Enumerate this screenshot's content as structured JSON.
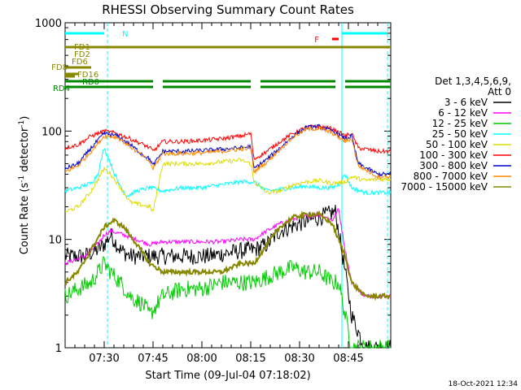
{
  "chart_data": {
    "type": "line",
    "title": "RHESSI Observing Summary Count Rates",
    "xlabel": "Start Time (09-Jul-04 07:18:02)",
    "ylabel_main": "Count Rate (s",
    "ylabel_sup": "-1",
    "ylabel_rest": " detector",
    "ylabel_tail": ")",
    "yscale": "log",
    "ylim": [
      1,
      1000
    ],
    "xlim_minutes": [
      0,
      100
    ],
    "x_ticks": [
      {
        "label": "07:30",
        "t": 12
      },
      {
        "label": "07:45",
        "t": 27
      },
      {
        "label": "08:00",
        "t": 42
      },
      {
        "label": "08:15",
        "t": 57
      },
      {
        "label": "08:30",
        "t": 72
      },
      {
        "label": "08:45",
        "t": 87
      }
    ],
    "y_ticks": [
      {
        "label": "1",
        "v": 1
      },
      {
        "label": "10",
        "v": 10
      },
      {
        "label": "100",
        "v": 100
      },
      {
        "label": "1000",
        "v": 1000
      }
    ],
    "legend_title": [
      "Det 1,3,4,5,6,9,",
      "Att 0"
    ],
    "legend_position": "right",
    "series": [
      {
        "name": "3 - 6 keV",
        "color": "#000000",
        "points": [
          [
            0,
            7
          ],
          [
            6,
            7
          ],
          [
            10,
            8
          ],
          [
            12,
            9
          ],
          [
            14,
            11
          ],
          [
            17,
            8
          ],
          [
            20,
            7
          ],
          [
            26,
            7
          ],
          [
            30,
            7
          ],
          [
            36,
            7
          ],
          [
            44,
            7
          ],
          [
            50,
            7.5
          ],
          [
            56,
            8
          ],
          [
            58,
            8
          ],
          [
            62,
            9
          ],
          [
            66,
            12
          ],
          [
            72,
            14
          ],
          [
            78,
            16
          ],
          [
            83,
            18
          ],
          [
            86,
            5
          ],
          [
            88,
            2
          ],
          [
            92,
            1
          ],
          [
            100,
            1
          ]
        ]
      },
      {
        "name": "6 - 12 keV",
        "color": "#ff00ff",
        "points": [
          [
            0,
            6
          ],
          [
            6,
            7
          ],
          [
            10,
            9
          ],
          [
            12,
            11
          ],
          [
            14,
            12
          ],
          [
            18,
            11
          ],
          [
            22,
            10
          ],
          [
            26,
            9
          ],
          [
            30,
            9.5
          ],
          [
            36,
            9.5
          ],
          [
            42,
            9.5
          ],
          [
            48,
            9.5
          ],
          [
            54,
            10
          ],
          [
            58,
            10
          ],
          [
            62,
            12
          ],
          [
            66,
            14
          ],
          [
            72,
            16
          ],
          [
            78,
            17
          ],
          [
            82,
            15
          ],
          [
            84,
            19
          ],
          [
            86,
            8
          ],
          [
            88,
            4
          ],
          [
            92,
            3
          ],
          [
            100,
            3
          ]
        ]
      },
      {
        "name": "12 - 25 keV",
        "color": "#00cc00",
        "points": [
          [
            0,
            3
          ],
          [
            4,
            3.5
          ],
          [
            8,
            4
          ],
          [
            12,
            6
          ],
          [
            14,
            5
          ],
          [
            17,
            4
          ],
          [
            20,
            3
          ],
          [
            24,
            2.5
          ],
          [
            26,
            2
          ],
          [
            30,
            3
          ],
          [
            36,
            3.5
          ],
          [
            42,
            3.5
          ],
          [
            48,
            4
          ],
          [
            54,
            4
          ],
          [
            58,
            4
          ],
          [
            62,
            4.5
          ],
          [
            66,
            5
          ],
          [
            70,
            5.5
          ],
          [
            74,
            5
          ],
          [
            78,
            5
          ],
          [
            82,
            4
          ],
          [
            84,
            4
          ],
          [
            86,
            2
          ],
          [
            88,
            1
          ],
          [
            100,
            1
          ]
        ]
      },
      {
        "name": "25 - 50 keV",
        "color": "#00ffff",
        "points": [
          [
            0,
            28
          ],
          [
            4,
            30
          ],
          [
            8,
            33
          ],
          [
            10,
            40
          ],
          [
            12,
            70
          ],
          [
            14,
            50
          ],
          [
            16,
            35
          ],
          [
            19,
            25
          ],
          [
            22,
            28
          ],
          [
            26,
            30
          ],
          [
            30,
            28
          ],
          [
            36,
            30
          ],
          [
            42,
            30
          ],
          [
            48,
            32
          ],
          [
            54,
            34
          ],
          [
            58,
            34
          ],
          [
            62,
            28
          ],
          [
            66,
            29
          ],
          [
            70,
            30
          ],
          [
            74,
            31
          ],
          [
            78,
            30
          ],
          [
            82,
            30
          ],
          [
            84,
            32
          ],
          [
            86,
            40
          ],
          [
            88,
            30
          ],
          [
            92,
            27
          ],
          [
            100,
            27
          ]
        ]
      },
      {
        "name": "50 - 100 keV",
        "color": "#dddd00",
        "points": [
          [
            0,
            18
          ],
          [
            4,
            20
          ],
          [
            8,
            28
          ],
          [
            12,
            45
          ],
          [
            14,
            40
          ],
          [
            17,
            30
          ],
          [
            20,
            22
          ],
          [
            26,
            20
          ],
          [
            27,
            18
          ],
          [
            30,
            50
          ],
          [
            36,
            50
          ],
          [
            42,
            50
          ],
          [
            48,
            52
          ],
          [
            54,
            54
          ],
          [
            57,
            50
          ],
          [
            58,
            34
          ],
          [
            62,
            27
          ],
          [
            66,
            28
          ],
          [
            70,
            32
          ],
          [
            74,
            34
          ],
          [
            78,
            35
          ],
          [
            82,
            33
          ],
          [
            86,
            34
          ],
          [
            88,
            38
          ],
          [
            92,
            35
          ],
          [
            96,
            36
          ],
          [
            100,
            36
          ]
        ]
      },
      {
        "name": "100 - 300 keV",
        "color": "#ff0000",
        "points": [
          [
            0,
            70
          ],
          [
            4,
            75
          ],
          [
            8,
            90
          ],
          [
            12,
            100
          ],
          [
            16,
            95
          ],
          [
            20,
            85
          ],
          [
            24,
            75
          ],
          [
            26,
            70
          ],
          [
            27,
            65
          ],
          [
            30,
            80
          ],
          [
            36,
            80
          ],
          [
            42,
            82
          ],
          [
            48,
            85
          ],
          [
            54,
            90
          ],
          [
            57,
            95
          ],
          [
            58,
            55
          ],
          [
            62,
            65
          ],
          [
            66,
            80
          ],
          [
            70,
            95
          ],
          [
            74,
            108
          ],
          [
            78,
            110
          ],
          [
            82,
            105
          ],
          [
            86,
            90
          ],
          [
            88,
            95
          ],
          [
            90,
            70
          ],
          [
            96,
            65
          ],
          [
            100,
            65
          ]
        ]
      },
      {
        "name": "300 - 800 keV",
        "color": "#0000cc",
        "points": [
          [
            0,
            45
          ],
          [
            4,
            50
          ],
          [
            8,
            70
          ],
          [
            12,
            95
          ],
          [
            16,
            90
          ],
          [
            20,
            75
          ],
          [
            24,
            60
          ],
          [
            26,
            55
          ],
          [
            27,
            48
          ],
          [
            30,
            65
          ],
          [
            36,
            65
          ],
          [
            42,
            66
          ],
          [
            48,
            68
          ],
          [
            54,
            70
          ],
          [
            57,
            72
          ],
          [
            58,
            45
          ],
          [
            62,
            55
          ],
          [
            66,
            70
          ],
          [
            70,
            90
          ],
          [
            74,
            108
          ],
          [
            78,
            110
          ],
          [
            82,
            100
          ],
          [
            86,
            85
          ],
          [
            88,
            90
          ],
          [
            90,
            50
          ],
          [
            96,
            40
          ],
          [
            100,
            40
          ]
        ]
      },
      {
        "name": "800 - 7000 keV",
        "color": "#ff8800",
        "points": [
          [
            0,
            42
          ],
          [
            4,
            48
          ],
          [
            8,
            65
          ],
          [
            12,
            90
          ],
          [
            16,
            88
          ],
          [
            20,
            72
          ],
          [
            24,
            58
          ],
          [
            26,
            52
          ],
          [
            27,
            45
          ],
          [
            30,
            62
          ],
          [
            36,
            62
          ],
          [
            42,
            63
          ],
          [
            48,
            65
          ],
          [
            54,
            68
          ],
          [
            57,
            70
          ],
          [
            58,
            42
          ],
          [
            62,
            52
          ],
          [
            66,
            68
          ],
          [
            70,
            88
          ],
          [
            74,
            104
          ],
          [
            78,
            106
          ],
          [
            82,
            96
          ],
          [
            86,
            80
          ],
          [
            88,
            85
          ],
          [
            90,
            48
          ],
          [
            96,
            38
          ],
          [
            100,
            38
          ]
        ]
      },
      {
        "name": "7000 - 15000 keV",
        "color": "#888800",
        "points": [
          [
            0,
            4
          ],
          [
            4,
            5
          ],
          [
            8,
            8
          ],
          [
            12,
            13
          ],
          [
            15,
            15
          ],
          [
            18,
            13
          ],
          [
            22,
            9
          ],
          [
            26,
            6
          ],
          [
            30,
            5
          ],
          [
            36,
            5
          ],
          [
            42,
            5
          ],
          [
            48,
            5
          ],
          [
            54,
            6
          ],
          [
            58,
            6
          ],
          [
            62,
            9
          ],
          [
            66,
            13
          ],
          [
            70,
            16
          ],
          [
            74,
            17
          ],
          [
            78,
            17
          ],
          [
            82,
            14
          ],
          [
            86,
            7
          ],
          [
            88,
            4
          ],
          [
            92,
            3
          ],
          [
            100,
            3
          ]
        ]
      }
    ],
    "state_bars": [
      {
        "label": "N",
        "color": "#00ffff",
        "segments": [
          [
            0,
            12
          ]
        ]
      },
      {
        "label": "F",
        "color": "#ff0000",
        "segments": [
          [
            82,
            84
          ]
        ]
      },
      {
        "label": "",
        "color": "#00ffff",
        "segments": [
          [
            85,
            99
          ]
        ]
      },
      {
        "label": "FD1",
        "color": "#888800",
        "segments": [
          [
            0,
            100
          ]
        ]
      },
      {
        "label": "FD2",
        "color": "#888800",
        "segments": [
          [
            0,
            100
          ]
        ]
      },
      {
        "label": "FD6",
        "color": "#888800",
        "segments": [
          [
            0,
            8
          ]
        ]
      },
      {
        "label": "FD8",
        "color": "#888800",
        "segments": [
          [
            0,
            4
          ]
        ]
      },
      {
        "label": "FD16",
        "color": "#888800",
        "segments": [
          [
            0,
            3
          ]
        ]
      },
      {
        "label": "RD0",
        "color": "#008800",
        "segments": [
          [
            0,
            27
          ],
          [
            30,
            57
          ],
          [
            60,
            83
          ],
          [
            86,
            100
          ]
        ]
      },
      {
        "label": "RD4",
        "color": "#008800",
        "segments": [
          [
            0,
            27
          ],
          [
            30,
            57
          ],
          [
            60,
            83
          ],
          [
            86,
            100
          ]
        ]
      }
    ],
    "vlines": [
      {
        "t": 13,
        "color": "#00ffff",
        "style": "dashed"
      },
      {
        "t": 85,
        "color": "#00ffff",
        "style": "solid"
      },
      {
        "t": 99,
        "color": "#00ffff",
        "style": "dashed"
      }
    ],
    "footer_timestamp": "18-Oct-2021 12:34"
  }
}
